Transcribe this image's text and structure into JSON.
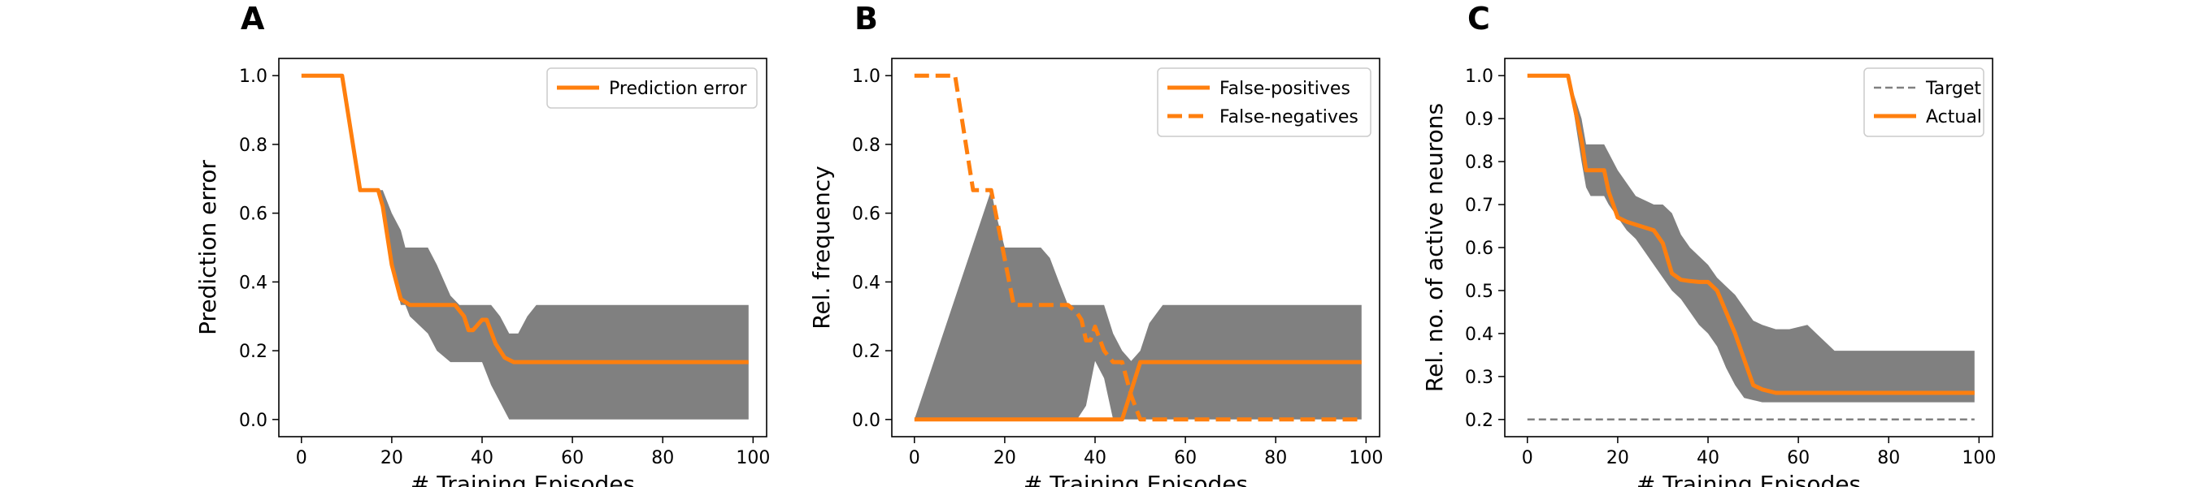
{
  "colors": {
    "orange": "#ff7f0e",
    "band": "#808080",
    "target": "#808080",
    "axis": "#000000"
  },
  "chart_data": [
    {
      "type": "line",
      "panel_letter": "A",
      "xlabel": "# Training Episodes",
      "ylabel": "Prediction error",
      "xlim": [
        -5,
        103
      ],
      "ylim": [
        -0.05,
        1.05
      ],
      "xticks": [
        0,
        20,
        40,
        60,
        80,
        100
      ],
      "xtick_labels": [
        "0",
        "20",
        "40",
        "60",
        "80",
        "100"
      ],
      "yticks": [
        0,
        0.2,
        0.4,
        0.6,
        0.8,
        1.0
      ],
      "ytick_labels": [
        "0.0",
        "0.2",
        "0.4",
        "0.6",
        "0.8",
        "1.0"
      ],
      "legend_position": "upper right",
      "band": {
        "x": [
          0,
          9,
          13,
          17,
          18,
          20,
          22,
          23,
          24,
          28,
          30,
          33,
          35,
          38,
          40,
          42,
          44,
          46,
          48,
          50,
          52,
          55,
          99
        ],
        "lower": [
          1.0,
          1.0,
          0.667,
          0.667,
          0.6,
          0.45,
          0.333,
          0.333,
          0.3,
          0.25,
          0.2,
          0.167,
          0.167,
          0.167,
          0.167,
          0.1,
          0.05,
          0.0,
          0.0,
          0.0,
          0.0,
          0.0,
          0.0
        ],
        "upper": [
          1.0,
          1.0,
          0.667,
          0.667,
          0.667,
          0.6,
          0.55,
          0.5,
          0.5,
          0.5,
          0.45,
          0.36,
          0.333,
          0.333,
          0.333,
          0.333,
          0.3,
          0.25,
          0.25,
          0.3,
          0.333,
          0.333,
          0.333
        ]
      },
      "series": [
        {
          "name": "Prediction error",
          "style": "solid",
          "x": [
            0,
            9,
            13,
            17,
            18,
            20,
            22,
            24,
            28,
            34,
            36,
            37,
            38,
            40,
            41,
            43,
            45,
            47,
            99
          ],
          "y": [
            1.0,
            1.0,
            0.667,
            0.667,
            0.62,
            0.45,
            0.35,
            0.333,
            0.333,
            0.333,
            0.3,
            0.26,
            0.26,
            0.29,
            0.29,
            0.22,
            0.18,
            0.167,
            0.167
          ]
        }
      ]
    },
    {
      "type": "line",
      "panel_letter": "B",
      "xlabel": "# Training Episodes",
      "ylabel": "Rel. frequency",
      "xlim": [
        -5,
        103
      ],
      "ylim": [
        -0.05,
        1.05
      ],
      "xticks": [
        0,
        20,
        40,
        60,
        80,
        100
      ],
      "xtick_labels": [
        "0",
        "20",
        "40",
        "60",
        "80",
        "100"
      ],
      "yticks": [
        0,
        0.2,
        0.4,
        0.6,
        0.8,
        1.0
      ],
      "ytick_labels": [
        "0.0",
        "0.2",
        "0.4",
        "0.6",
        "0.8",
        "1.0"
      ],
      "legend_position": "upper right",
      "band": {
        "x": [
          0,
          17,
          18,
          20,
          22,
          24,
          28,
          30,
          32,
          34,
          36,
          38,
          40,
          42,
          44,
          46,
          48,
          50,
          52,
          55,
          60,
          99
        ],
        "lower": [
          0.0,
          0.0,
          0.0,
          0.0,
          0.0,
          0.0,
          0.0,
          0.0,
          0.0,
          0.0,
          0.0,
          0.04,
          0.17,
          0.12,
          0.0,
          0.0,
          0.0,
          0.0,
          0.0,
          0.0,
          0.0,
          0.0
        ],
        "upper": [
          0.0,
          0.667,
          0.6,
          0.5,
          0.5,
          0.5,
          0.5,
          0.47,
          0.4,
          0.333,
          0.333,
          0.333,
          0.333,
          0.333,
          0.25,
          0.2,
          0.17,
          0.2,
          0.28,
          0.333,
          0.333,
          0.333
        ]
      },
      "series": [
        {
          "name": "False-positives",
          "style": "solid",
          "x": [
            0,
            46,
            50,
            99
          ],
          "y": [
            0.0,
            0.0,
            0.167,
            0.167
          ]
        },
        {
          "name": "False-negatives",
          "style": "dashed",
          "x": [
            0,
            9,
            13,
            17,
            18,
            21,
            22,
            34,
            36,
            37,
            38,
            39,
            40,
            42,
            44,
            46,
            48,
            50,
            99
          ],
          "y": [
            1.0,
            1.0,
            0.667,
            0.667,
            0.6,
            0.4,
            0.333,
            0.333,
            0.31,
            0.29,
            0.23,
            0.23,
            0.27,
            0.2,
            0.167,
            0.167,
            0.07,
            0.0,
            0.0
          ]
        }
      ]
    },
    {
      "type": "line",
      "panel_letter": "C",
      "xlabel": "# Training Episodes",
      "ylabel": "Rel. no. of active neurons",
      "xlim": [
        -5,
        103
      ],
      "ylim": [
        0.16,
        1.04
      ],
      "xticks": [
        0,
        20,
        40,
        60,
        80,
        100
      ],
      "xtick_labels": [
        "0",
        "20",
        "40",
        "60",
        "80",
        "100"
      ],
      "yticks": [
        0.2,
        0.3,
        0.4,
        0.5,
        0.6,
        0.7,
        0.8,
        0.9,
        1.0
      ],
      "ytick_labels": [
        "0.2",
        "0.3",
        "0.4",
        "0.5",
        "0.6",
        "0.7",
        "0.8",
        "0.9",
        "1.0"
      ],
      "legend_position": "upper right",
      "band": {
        "x": [
          0,
          9,
          12,
          13,
          14,
          17,
          18,
          20,
          22,
          24,
          26,
          28,
          30,
          32,
          34,
          36,
          38,
          40,
          42,
          44,
          46,
          48,
          50,
          52,
          55,
          58,
          62,
          65,
          68,
          70,
          99
        ],
        "lower": [
          1.0,
          1.0,
          0.8,
          0.74,
          0.72,
          0.72,
          0.7,
          0.67,
          0.64,
          0.62,
          0.59,
          0.56,
          0.53,
          0.5,
          0.48,
          0.45,
          0.42,
          0.4,
          0.37,
          0.32,
          0.28,
          0.25,
          0.245,
          0.24,
          0.24,
          0.24,
          0.24,
          0.24,
          0.24,
          0.24,
          0.24
        ],
        "upper": [
          1.0,
          1.0,
          0.9,
          0.84,
          0.84,
          0.84,
          0.82,
          0.78,
          0.75,
          0.72,
          0.71,
          0.7,
          0.7,
          0.68,
          0.63,
          0.6,
          0.58,
          0.56,
          0.53,
          0.51,
          0.49,
          0.46,
          0.43,
          0.42,
          0.41,
          0.41,
          0.42,
          0.39,
          0.36,
          0.36,
          0.36
        ]
      },
      "series": [
        {
          "name": "Target",
          "style": "target",
          "x": [
            0,
            99
          ],
          "y": [
            0.2,
            0.2
          ]
        },
        {
          "name": "Actual",
          "style": "solid",
          "x": [
            0,
            9,
            12,
            13,
            17,
            18,
            20,
            22,
            28,
            30,
            32,
            34,
            36,
            38,
            40,
            42,
            44,
            46,
            48,
            50,
            52,
            55,
            58,
            99
          ],
          "y": [
            1.0,
            1.0,
            0.85,
            0.78,
            0.78,
            0.73,
            0.67,
            0.66,
            0.64,
            0.61,
            0.54,
            0.525,
            0.522,
            0.52,
            0.52,
            0.5,
            0.45,
            0.4,
            0.34,
            0.28,
            0.27,
            0.262,
            0.262,
            0.262
          ]
        }
      ]
    }
  ]
}
